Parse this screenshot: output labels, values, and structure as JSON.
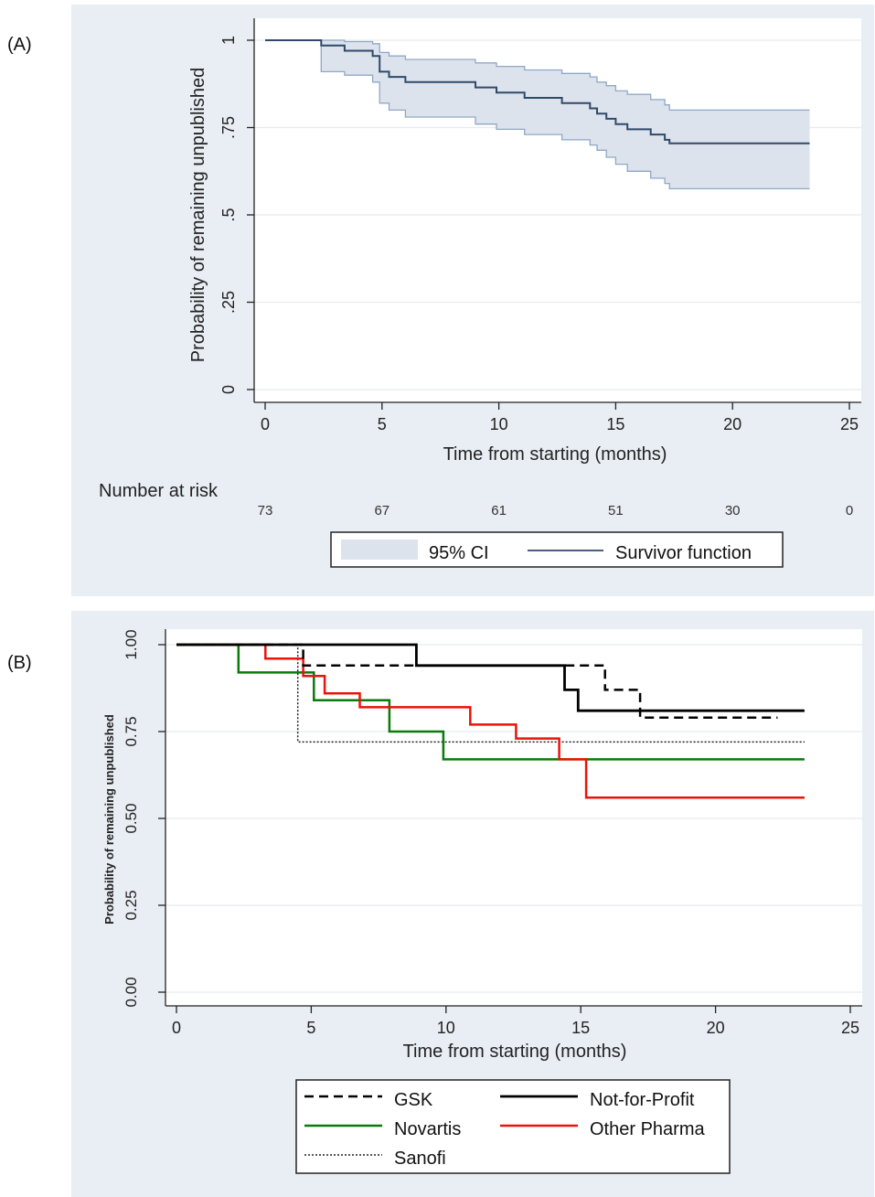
{
  "panels": {
    "a_label": "(A)",
    "b_label": "(B)"
  },
  "chart_data": [
    {
      "type": "line",
      "panel": "A",
      "title": "",
      "xlabel": "Time from starting (months)",
      "ylabel": "Probability of remaining unpublished",
      "xlim": [
        0,
        25
      ],
      "ylim": [
        0,
        1
      ],
      "xticks": [
        0,
        5,
        10,
        15,
        20,
        25
      ],
      "yticks": [
        0,
        0.25,
        0.5,
        0.75,
        1
      ],
      "ytick_labels": [
        "0",
        ".25",
        ".5",
        ".75",
        "1"
      ],
      "grid": true,
      "legend_position": "bottom",
      "series": [
        {
          "name": "Survivor function",
          "color": "#2e4a6b",
          "step": [
            [
              0,
              1.0
            ],
            [
              2.4,
              0.985
            ],
            [
              3.4,
              0.97
            ],
            [
              4.6,
              0.955
            ],
            [
              4.9,
              0.91
            ],
            [
              5.3,
              0.895
            ],
            [
              6.0,
              0.88
            ],
            [
              9.0,
              0.865
            ],
            [
              9.9,
              0.85
            ],
            [
              11.1,
              0.835
            ],
            [
              12.7,
              0.82
            ],
            [
              13.9,
              0.805
            ],
            [
              14.2,
              0.79
            ],
            [
              14.6,
              0.775
            ],
            [
              15.0,
              0.76
            ],
            [
              15.5,
              0.745
            ],
            [
              16.5,
              0.73
            ],
            [
              17.1,
              0.715
            ],
            [
              17.3,
              0.705
            ],
            [
              23.3,
              0.705
            ]
          ]
        }
      ],
      "ci": {
        "name": "95% CI",
        "color": "#dde3ec",
        "edge_color": "#8ea8c8",
        "upper": [
          [
            0,
            1.0
          ],
          [
            2.4,
            1.0
          ],
          [
            3.4,
            0.996
          ],
          [
            4.6,
            0.99
          ],
          [
            4.9,
            0.965
          ],
          [
            5.3,
            0.955
          ],
          [
            6.0,
            0.945
          ],
          [
            9.0,
            0.935
          ],
          [
            9.9,
            0.925
          ],
          [
            11.1,
            0.915
          ],
          [
            12.7,
            0.905
          ],
          [
            13.9,
            0.895
          ],
          [
            14.2,
            0.88
          ],
          [
            14.6,
            0.87
          ],
          [
            15.0,
            0.855
          ],
          [
            15.5,
            0.845
          ],
          [
            16.5,
            0.83
          ],
          [
            17.1,
            0.815
          ],
          [
            17.3,
            0.8
          ],
          [
            23.3,
            0.8
          ]
        ],
        "lower": [
          [
            0,
            1.0
          ],
          [
            2.4,
            0.91
          ],
          [
            3.4,
            0.9
          ],
          [
            4.6,
            0.88
          ],
          [
            4.9,
            0.82
          ],
          [
            5.3,
            0.8
          ],
          [
            6.0,
            0.78
          ],
          [
            9.0,
            0.76
          ],
          [
            9.9,
            0.745
          ],
          [
            11.1,
            0.73
          ],
          [
            12.7,
            0.715
          ],
          [
            13.9,
            0.7
          ],
          [
            14.2,
            0.685
          ],
          [
            14.6,
            0.665
          ],
          [
            15.0,
            0.645
          ],
          [
            15.5,
            0.625
          ],
          [
            16.5,
            0.605
          ],
          [
            17.1,
            0.59
          ],
          [
            17.3,
            0.575
          ],
          [
            23.3,
            0.575
          ]
        ]
      },
      "number_at_risk": {
        "label": "Number at risk",
        "times": [
          0,
          5,
          10,
          15,
          20,
          25
        ],
        "counts": [
          "73",
          "67",
          "61",
          "51",
          "30",
          "0"
        ]
      },
      "legend": [
        "95% CI",
        "Survivor function"
      ]
    },
    {
      "type": "line",
      "panel": "B",
      "title": "",
      "xlabel": "Time from starting (months)",
      "ylabel": "Probability of remaining unpublished",
      "xlim": [
        0,
        25
      ],
      "ylim": [
        0,
        1
      ],
      "xticks": [
        0,
        5,
        10,
        15,
        20,
        25
      ],
      "yticks": [
        0,
        0.25,
        0.5,
        0.75,
        1
      ],
      "ytick_labels": [
        "0.00",
        "0.25",
        "0.50",
        "0.75",
        "1.00"
      ],
      "grid": true,
      "legend_position": "bottom",
      "series": [
        {
          "name": "GSK",
          "color": "#000000",
          "dash": "10,6",
          "width": 2.5,
          "step": [
            [
              0,
              1.0
            ],
            [
              4.7,
              0.94
            ],
            [
              15.9,
              0.87
            ],
            [
              17.2,
              0.79
            ],
            [
              22.3,
              0.79
            ]
          ]
        },
        {
          "name": "Not-for-Profit",
          "color": "#000000",
          "dash": "",
          "width": 2.8,
          "step": [
            [
              0,
              1.0
            ],
            [
              8.9,
              0.94
            ],
            [
              14.4,
              0.87
            ],
            [
              14.9,
              0.81
            ],
            [
              23.3,
              0.81
            ]
          ]
        },
        {
          "name": "Novartis",
          "color": "#0a7a0a",
          "dash": "",
          "width": 2.5,
          "step": [
            [
              0,
              1.0
            ],
            [
              2.3,
              0.92
            ],
            [
              5.1,
              0.84
            ],
            [
              7.9,
              0.75
            ],
            [
              9.9,
              0.67
            ],
            [
              23.3,
              0.67
            ]
          ]
        },
        {
          "name": "Other Pharma",
          "color": "#e8140a",
          "dash": "",
          "width": 2.5,
          "step": [
            [
              0,
              1.0
            ],
            [
              3.3,
              0.96
            ],
            [
              4.7,
              0.91
            ],
            [
              5.5,
              0.86
            ],
            [
              6.8,
              0.82
            ],
            [
              10.9,
              0.77
            ],
            [
              12.6,
              0.73
            ],
            [
              14.2,
              0.67
            ],
            [
              15.2,
              0.56
            ],
            [
              23.3,
              0.56
            ]
          ]
        },
        {
          "name": "Sanofi",
          "color": "#222222",
          "dash": "2,2",
          "width": 1.5,
          "step": [
            [
              0,
              1.0
            ],
            [
              4.5,
              0.72
            ],
            [
              23.3,
              0.72
            ]
          ]
        }
      ],
      "legend": [
        "GSK",
        "Not-for-Profit",
        "Novartis",
        "Other Pharma",
        "Sanofi"
      ]
    }
  ]
}
